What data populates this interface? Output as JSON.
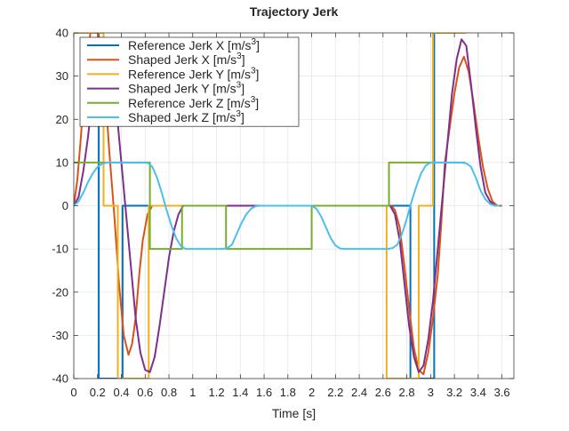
{
  "chart_data": {
    "type": "line",
    "title": "Trajectory Jerk",
    "xlabel": "Time [s]",
    "ylabel": "",
    "xlim": [
      0,
      3.7
    ],
    "ylim": [
      -40,
      40
    ],
    "xticks": [
      0,
      0.2,
      0.4,
      0.6,
      0.8,
      1,
      1.2,
      1.4,
      1.6,
      1.8,
      2,
      2.2,
      2.4,
      2.6,
      2.8,
      3,
      3.2,
      3.4,
      3.6
    ],
    "xtick_labels": [
      "0",
      "0.2",
      "0.4",
      "0.6",
      "0.8",
      "1",
      "1.2",
      "1.4",
      "1.6",
      "1.8",
      "2",
      "2.2",
      "2.4",
      "2.6",
      "2.8",
      "3",
      "3.2",
      "3.4",
      "3.6"
    ],
    "yticks": [
      -40,
      -30,
      -20,
      -10,
      0,
      10,
      20,
      30,
      40
    ],
    "ytick_labels": [
      "-40",
      "-30",
      "-20",
      "-10",
      "0",
      "10",
      "20",
      "30",
      "40"
    ],
    "grid": true,
    "legend_position": "top-left",
    "series": [
      {
        "name": "Reference Jerk X",
        "legend_main": "Reference Jerk X [m/s",
        "legend_sup": "3",
        "legend_end": "]",
        "color": "#0072BD",
        "x": [
          0,
          0.2,
          0.2,
          0.21,
          0.21,
          0.41,
          0.41,
          2.83,
          2.83,
          3.03,
          3.03,
          3.06
        ],
        "y": [
          40,
          40,
          40,
          40,
          -40,
          -40,
          0,
          0,
          -40,
          -40,
          40,
          40
        ]
      },
      {
        "name": "Shaped Jerk X",
        "legend_main": "Shaped Jerk X [m/s",
        "legend_sup": "3",
        "legend_end": "]",
        "color": "#D95319",
        "x": [
          0,
          0.03,
          0.06,
          0.1,
          0.14,
          0.18,
          0.2,
          0.23,
          0.27,
          0.3,
          0.34,
          0.38,
          0.42,
          0.46,
          0.49,
          0.52,
          0.55,
          0.58,
          0.62,
          0.66,
          0.7,
          2.67,
          2.7,
          2.74,
          2.78,
          2.82,
          2.86,
          2.9,
          2.94,
          2.98,
          3.02,
          3.06,
          3.09,
          3.12,
          3.16,
          3.2,
          3.24,
          3.28,
          3.32,
          3.36,
          3.4,
          3.44,
          3.48,
          3.52,
          3.56,
          3.6
        ],
        "y": [
          0,
          6,
          16,
          32,
          40,
          40,
          40,
          38,
          24,
          12,
          -2,
          -18,
          -30,
          -34.5,
          -32,
          -26,
          -16,
          -8,
          -2,
          0,
          0,
          0,
          -1,
          -5,
          -14,
          -24,
          -33,
          -38,
          -39,
          -34,
          -26,
          -16,
          -4,
          10,
          18,
          26,
          32,
          34.5,
          31,
          24,
          16,
          9,
          4,
          1,
          0,
          0
        ]
      },
      {
        "name": "Reference Jerk Y",
        "legend_main": "Reference Jerk Y [m/s",
        "legend_sup": "3",
        "legend_end": "]",
        "color": "#EDB120",
        "x": [
          0,
          0.25,
          0.25,
          0.37,
          0.37,
          0.63,
          0.63,
          2.63,
          2.63,
          2.9,
          2.9,
          3.02,
          3.02,
          3.3
        ],
        "y": [
          40,
          40,
          0,
          0,
          -40,
          -40,
          0,
          0,
          -40,
          -40,
          0,
          0,
          40,
          40
        ]
      },
      {
        "name": "Shaped Jerk Y",
        "legend_main": "Shaped Jerk Y [m/s",
        "legend_sup": "3",
        "legend_end": "]",
        "color": "#7E2F8E",
        "x": [
          0,
          0.04,
          0.08,
          0.12,
          0.16,
          0.2,
          0.24,
          0.28,
          0.32,
          0.36,
          0.4,
          0.44,
          0.48,
          0.52,
          0.56,
          0.6,
          0.64,
          0.68,
          0.72,
          0.76,
          0.8,
          0.84,
          0.88,
          0.92,
          0.96,
          2.66,
          2.7,
          2.74,
          2.78,
          2.82,
          2.86,
          2.9,
          2.94,
          2.98,
          3.02,
          3.06,
          3.1,
          3.14,
          3.18,
          3.22,
          3.26,
          3.3,
          3.34,
          3.38,
          3.42,
          3.46,
          3.5,
          3.54,
          3.58
        ],
        "y": [
          0,
          2,
          8,
          16,
          26,
          34,
          38,
          38,
          32,
          22,
          10,
          -2,
          -14,
          -26,
          -34,
          -38,
          -38.5,
          -35,
          -28,
          -20,
          -12,
          -6,
          -2,
          0,
          0,
          0,
          -2,
          -8,
          -18,
          -28,
          -35,
          -38.5,
          -37,
          -31,
          -22,
          -10,
          2,
          14,
          26,
          34,
          38.5,
          37,
          28,
          18,
          9,
          3,
          1,
          0,
          0
        ]
      },
      {
        "name": "Reference Jerk Z",
        "legend_main": "Reference Jerk Z [m/s",
        "legend_sup": "3",
        "legend_end": "]",
        "color": "#77AC30",
        "x": [
          0,
          0.64,
          0.64,
          0.91,
          0.91,
          1.28,
          1.28,
          2,
          2,
          2.65,
          2.65,
          3.29
        ],
        "y": [
          10,
          10,
          -10,
          -10,
          0,
          0,
          -10,
          -10,
          0,
          0,
          10,
          10
        ]
      },
      {
        "name": "Shaped Jerk Z",
        "legend_main": "Shaped Jerk Z [m/s",
        "legend_sup": "3",
        "legend_end": "]",
        "color": "#4DBEEE",
        "x": [
          0,
          0.04,
          0.08,
          0.12,
          0.16,
          0.2,
          0.24,
          0.28,
          0.32,
          0.36,
          0.6,
          0.63,
          0.66,
          0.7,
          0.74,
          0.78,
          0.82,
          0.86,
          0.9,
          0.94,
          1.25,
          1.29,
          1.33,
          1.37,
          1.41,
          1.45,
          1.49,
          1.53,
          1.57,
          2.0,
          2.04,
          2.08,
          2.12,
          2.16,
          2.2,
          2.24,
          2.28,
          2.32,
          2.64,
          2.68,
          2.72,
          2.76,
          2.8,
          2.84,
          2.88,
          2.92,
          2.96,
          3.0,
          3.26,
          3.3,
          3.34,
          3.38,
          3.42,
          3.46,
          3.5,
          3.54,
          3.58
        ],
        "y": [
          0,
          1,
          3,
          5.5,
          7.5,
          9,
          9.7,
          10,
          10,
          10,
          10,
          9.8,
          9,
          6.5,
          3,
          -1,
          -4.5,
          -7.5,
          -9.3,
          -10,
          -10,
          -9.8,
          -9,
          -6.5,
          -4,
          -2,
          -0.7,
          -0.1,
          0,
          0,
          -0.7,
          -2.5,
          -5,
          -7.5,
          -9.2,
          -9.9,
          -10,
          -10,
          -10,
          -9.8,
          -9,
          -6.5,
          -3,
          1,
          4.5,
          7.5,
          9.3,
          10,
          10,
          9.8,
          9,
          6.5,
          3.5,
          1.5,
          0.4,
          0,
          0
        ]
      }
    ]
  }
}
